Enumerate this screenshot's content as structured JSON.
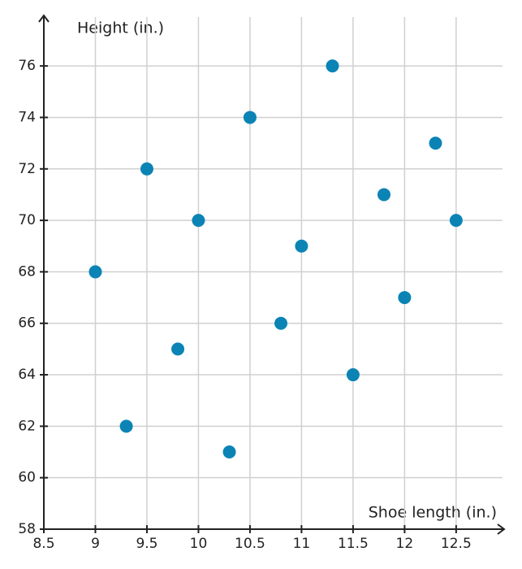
{
  "chart_data": {
    "type": "scatter",
    "x_label": "Shoe length (in.)",
    "y_label": "Height (in.)",
    "x": [
      9,
      9.3,
      9.5,
      9.8,
      10,
      10.3,
      10.5,
      10.8,
      11,
      11.3,
      11.5,
      11.8,
      12,
      12.3,
      12.5
    ],
    "values": [
      68,
      62,
      72,
      65,
      70,
      61,
      74,
      66,
      69,
      76,
      64,
      71,
      67,
      73,
      70
    ],
    "color": "#0b84b5",
    "xlim": [
      8.5,
      12.95
    ],
    "ylim": [
      58,
      77.9
    ],
    "xticks": [
      8.5,
      9,
      9.5,
      10,
      10.5,
      11,
      11.5,
      12,
      12.5
    ],
    "yticks": [
      58,
      60,
      62,
      64,
      66,
      68,
      70,
      72,
      74,
      76
    ],
    "grid": true
  }
}
